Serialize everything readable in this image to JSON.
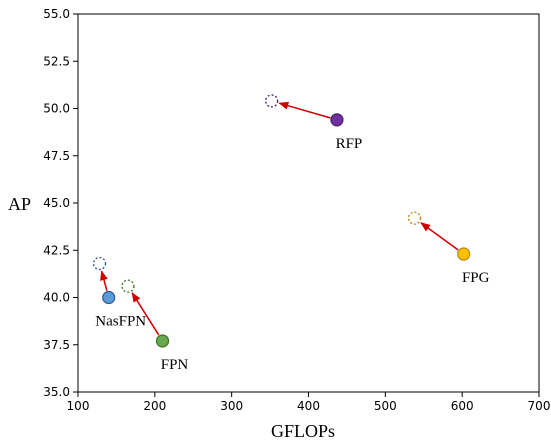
{
  "chart_data": {
    "type": "scatter",
    "title": "",
    "xlabel": "GFLOPs",
    "ylabel": "AP",
    "xlim": [
      100,
      700
    ],
    "ylim": [
      35.0,
      55.0
    ],
    "x_ticks": [
      100,
      200,
      300,
      400,
      500,
      600,
      700
    ],
    "y_ticks": [
      "35.0",
      "37.5",
      "40.0",
      "42.5",
      "45.0",
      "47.5",
      "50.0",
      "52.5",
      "55.0"
    ],
    "grid": false,
    "arrow_color": "#cc0000",
    "points": [
      {
        "label": "FPN",
        "start": {
          "x": 210,
          "y": 37.7
        },
        "end": {
          "x": 165,
          "y": 40.6
        },
        "fill": "#6aa84f",
        "stroke": "#38761d",
        "label_anchor": "below"
      },
      {
        "label": "NasFPN",
        "start": {
          "x": 140,
          "y": 40.0
        },
        "end": {
          "x": 128,
          "y": 41.8
        },
        "fill": "#5b9bd5",
        "stroke": "#2f5597",
        "label_anchor": "below"
      },
      {
        "label": "RFP",
        "start": {
          "x": 437,
          "y": 49.4
        },
        "end": {
          "x": 352,
          "y": 50.4
        },
        "fill": "#7030a0",
        "stroke": "#4b1d6e",
        "label_anchor": "below"
      },
      {
        "label": "FPG",
        "start": {
          "x": 602,
          "y": 42.3
        },
        "end": {
          "x": 538,
          "y": 44.2
        },
        "fill": "#ffc000",
        "stroke": "#b8860b",
        "label_anchor": "below"
      }
    ]
  }
}
